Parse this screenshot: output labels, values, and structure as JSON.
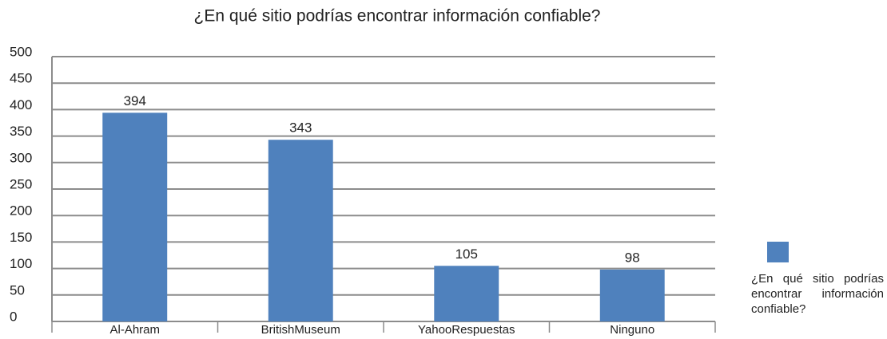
{
  "chart_data": {
    "type": "bar",
    "title": "¿En qué sitio podrías encontrar información confiable?",
    "categories": [
      "Al-Ahram",
      "BritishMuseum",
      "YahooRespuestas",
      "Ninguno"
    ],
    "series": [
      {
        "name": "¿En qué sitio podrías encontrar información confiable?",
        "color": "#4f81bd",
        "values": [
          394,
          343,
          105,
          98
        ]
      }
    ],
    "ylim": [
      0,
      500
    ],
    "yticks": [
      0,
      50,
      100,
      150,
      200,
      250,
      300,
      350,
      400,
      450,
      500
    ],
    "grid": true,
    "legend": "right"
  }
}
